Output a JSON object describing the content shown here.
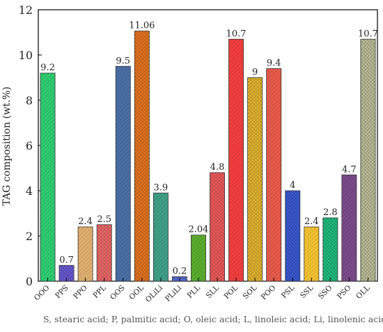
{
  "chart_data": {
    "type": "bar",
    "title": "",
    "xlabel": "",
    "ylabel": "TAG composition (wt.%)",
    "ylim": [
      0,
      12
    ],
    "yticks": [
      0,
      2,
      4,
      6,
      8,
      10,
      12
    ],
    "grid": false,
    "categories": [
      "OOO",
      "PPS",
      "PPO",
      "PPL",
      "OOS",
      "OOL",
      "OLiLi",
      "PLiLi",
      "PLL",
      "SLL",
      "POL",
      "SOL",
      "POO",
      "PSL",
      "SSL",
      "SSO",
      "PSO",
      "OLL"
    ],
    "values": [
      9.2,
      0.7,
      2.4,
      2.5,
      9.5,
      11.06,
      3.9,
      0.2,
      2.04,
      4.8,
      10.7,
      9,
      9.4,
      4,
      2.4,
      2.8,
      4.7,
      10.7
    ],
    "value_labels": [
      "9.2",
      "0.7",
      "2.4",
      "2.5",
      "9.5",
      "11.06",
      "3.9",
      "0.2",
      "2.04",
      "4.8",
      "10.7",
      "9",
      "9.4",
      "4",
      "2.4",
      "2.8",
      "4.7",
      "10.7"
    ],
    "colors": [
      "#2ecc71",
      "#6b5bd6",
      "#e0b070",
      "#f06a6a",
      "#4a6fa5",
      "#e8761f",
      "#3f9f86",
      "#5b6fd6",
      "#5aac2e",
      "#f25c5c",
      "#f23e3e",
      "#e6b830",
      "#e85a4a",
      "#3b5bd6",
      "#f2c230",
      "#20c080",
      "#7a4a8a",
      "#bfbf9a"
    ],
    "footnote": "S, stearic acid; P, palmitic acid; O, oleic acid; L, linoleic acid; Li, linolenic acid;"
  }
}
